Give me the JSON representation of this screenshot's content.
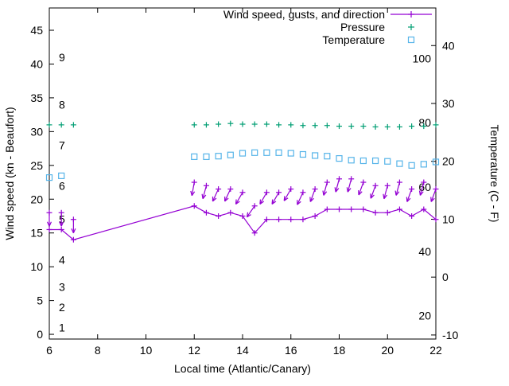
{
  "chart_data": {
    "type": "line",
    "title": "",
    "xlabel": "Local time (Atlantic/Canary)",
    "ylabel_left": "Wind speed (kn - Beaufort)",
    "ylabel_right": "Temperature (C - F)",
    "xlim": [
      6,
      22
    ],
    "x_ticks": [
      6,
      8,
      10,
      12,
      14,
      16,
      18,
      20,
      22
    ],
    "ylim_left": [
      -0.7,
      48.3
    ],
    "y_ticks_left": [
      0,
      5,
      10,
      15,
      20,
      25,
      30,
      35,
      40,
      45
    ],
    "ylim_right": [
      -10.7,
      46.5
    ],
    "y_ticks_right": [
      -10,
      0,
      10,
      20,
      30,
      40
    ],
    "grid": false,
    "legend_position": "top-right-inside",
    "beaufort_scale_labels": [
      {
        "label": "1",
        "kn": 1
      },
      {
        "label": "2",
        "kn": 4
      },
      {
        "label": "3",
        "kn": 7
      },
      {
        "label": "4",
        "kn": 11
      },
      {
        "label": "5",
        "kn": 17
      },
      {
        "label": "6",
        "kn": 22
      },
      {
        "label": "7",
        "kn": 28
      },
      {
        "label": "8",
        "kn": 34
      },
      {
        "label": "9",
        "kn": 41
      }
    ],
    "fahrenheit_scale_labels": [
      {
        "label": "20",
        "f": 20
      },
      {
        "label": "40",
        "f": 40
      },
      {
        "label": "60",
        "f": 60
      },
      {
        "label": "80",
        "f": 80
      },
      {
        "label": "100",
        "f": 100
      }
    ],
    "legend": [
      {
        "label": "Wind speed, gusts, and direction",
        "marker": "wind-line",
        "color": "#9400d3"
      },
      {
        "label": "Pressure",
        "marker": "plus",
        "color": "#009e73"
      },
      {
        "label": "Temperature",
        "marker": "square",
        "color": "#56b4e9"
      }
    ],
    "series": {
      "wind": {
        "axis": "left",
        "color": "#9400d3",
        "x": [
          6,
          6.5,
          7,
          12,
          12.5,
          13,
          13.5,
          14,
          14.5,
          15,
          15.5,
          16,
          16.5,
          17,
          17.5,
          18,
          18.5,
          19,
          19.5,
          20,
          20.5,
          21,
          21.5,
          22
        ],
        "speed": [
          15.5,
          15.5,
          14,
          19,
          18,
          17.5,
          18,
          17.5,
          15,
          17,
          17,
          17,
          17,
          17.5,
          18.5,
          18.5,
          18.5,
          18.5,
          18,
          18,
          18.5,
          17.5,
          18.5,
          17
        ],
        "gust": [
          18,
          18,
          17,
          22.5,
          22,
          21.5,
          21.5,
          21,
          19,
          21,
          21,
          21.5,
          21,
          21.5,
          22.5,
          23,
          23,
          22.5,
          22,
          22,
          22.5,
          21.5,
          22.5,
          21.5
        ],
        "arrow_angle_deg": [
          0,
          0,
          0,
          10,
          15,
          25,
          25,
          30,
          35,
          30,
          30,
          30,
          25,
          20,
          15,
          15,
          15,
          20,
          20,
          15,
          15,
          20,
          15,
          20
        ]
      },
      "pressure": {
        "axis": "left",
        "color": "#009e73",
        "x": [
          6,
          6.5,
          7,
          12,
          12.5,
          13,
          13.5,
          14,
          14.5,
          15,
          15.5,
          16,
          16.5,
          17,
          17.5,
          18,
          18.5,
          19,
          19.5,
          20,
          20.5,
          21,
          21.5,
          22
        ],
        "y": [
          31,
          31,
          31,
          31,
          31,
          31.1,
          31.2,
          31.1,
          31.1,
          31.1,
          31,
          31,
          30.9,
          30.9,
          30.9,
          30.8,
          30.8,
          30.8,
          30.7,
          30.7,
          30.7,
          30.8,
          30.8,
          31
        ]
      },
      "temperature": {
        "axis": "right",
        "color": "#56b4e9",
        "x": [
          6,
          6.5,
          12,
          12.5,
          13,
          13.5,
          14,
          14.5,
          15,
          15.5,
          16,
          16.5,
          17,
          17.5,
          18,
          18.5,
          19,
          19.5,
          20,
          20.5,
          21,
          21.5,
          22
        ],
        "y_celsius": [
          17.2,
          17.5,
          20.8,
          20.8,
          20.9,
          21.1,
          21.4,
          21.5,
          21.5,
          21.5,
          21.4,
          21.2,
          21.0,
          20.9,
          20.5,
          20.2,
          20.1,
          20.1,
          20.0,
          19.6,
          19.3,
          19.5,
          19.9
        ]
      }
    }
  }
}
